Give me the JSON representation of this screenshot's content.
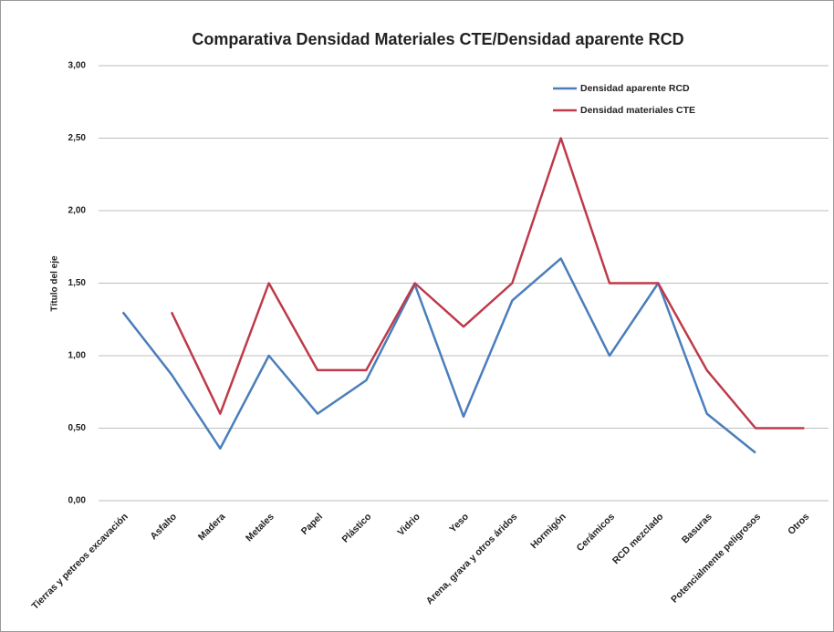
{
  "chart_data": {
    "type": "line",
    "title": "Comparativa Densidad Materiales CTE/Densidad aparente RCD",
    "y_label": "Título del eje",
    "categories": [
      "Tierras y petreos excavación",
      "Asfalto",
      "Madera",
      "Metales",
      "Papel",
      "Plástico",
      "Vidrio",
      "Yeso",
      "Arena, grava y otros áridos",
      "Hormigón",
      "Cerámicos",
      "RCD mezclado",
      "Basuras",
      "Potencialmente peligrosos",
      "Otros"
    ],
    "series": [
      {
        "name": "Densidad aparente RCD",
        "color": "#4a7ebb",
        "values": [
          1.3,
          0.87,
          0.36,
          1.0,
          0.6,
          0.83,
          1.49,
          0.58,
          1.38,
          1.67,
          1.0,
          1.5,
          0.6,
          0.33,
          null
        ]
      },
      {
        "name": "Densidad materiales CTE",
        "color": "#be3a4a",
        "values": [
          null,
          1.3,
          0.6,
          1.5,
          0.9,
          0.9,
          1.5,
          1.2,
          1.5,
          2.5,
          1.5,
          1.5,
          0.9,
          0.5,
          0.5
        ]
      }
    ],
    "ylim": [
      0,
      3
    ],
    "yticks": [
      {
        "value": 0,
        "label": "0,00"
      },
      {
        "value": 0.5,
        "label": "0,50"
      },
      {
        "value": 1,
        "label": "1,00"
      },
      {
        "value": 1.5,
        "label": "1,50"
      },
      {
        "value": 2,
        "label": "2,00"
      },
      {
        "value": 2.5,
        "label": "2,50"
      },
      {
        "value": 3,
        "label": "3,00"
      }
    ],
    "grid": true,
    "legend": "upper right"
  }
}
